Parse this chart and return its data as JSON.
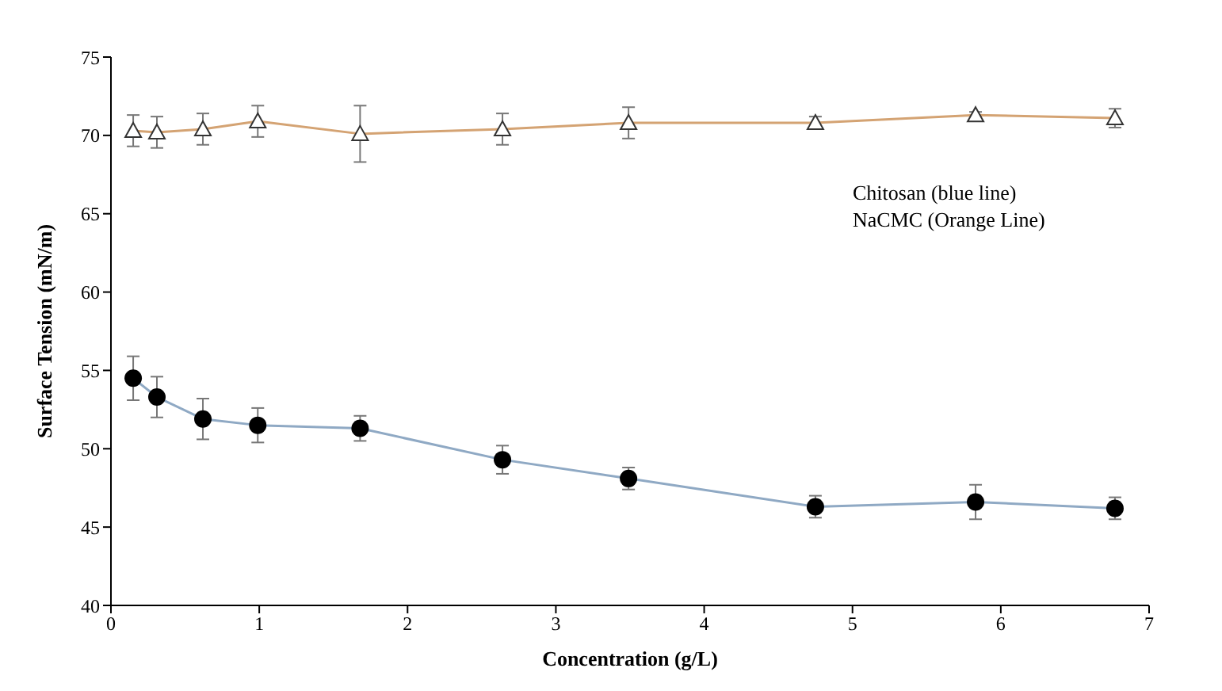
{
  "chart_data": {
    "type": "line",
    "xlabel": "Concentration (g/L)",
    "ylabel": "Surface Tension (mN/m)",
    "x": [
      0.15,
      0.31,
      0.62,
      0.99,
      1.68,
      2.64,
      3.49,
      4.75,
      5.83,
      6.77
    ],
    "series": [
      {
        "color": "#8fa9c4",
        "marker": "circle",
        "values": [
          54.5,
          53.3,
          51.9,
          51.5,
          51.3,
          49.3,
          48.1,
          46.3,
          46.6,
          46.2
        ],
        "errors": [
          1.4,
          1.3,
          1.3,
          1.1,
          0.8,
          0.9,
          0.7,
          0.7,
          1.1,
          0.7
        ]
      },
      {
        "color": "#d4a373",
        "marker": "triangle",
        "values": [
          70.3,
          70.2,
          70.4,
          70.9,
          70.1,
          70.4,
          70.8,
          70.8,
          71.3,
          71.1
        ],
        "errors": [
          1.0,
          1.0,
          1.0,
          1.0,
          1.8,
          1.0,
          1.0,
          0.4,
          0.2,
          0.6
        ]
      }
    ],
    "xlim": [
      0,
      7
    ],
    "xticks": [
      0,
      1,
      2,
      3,
      4,
      5,
      6,
      7
    ],
    "ylim": [
      40,
      75
    ],
    "yticks": [
      40,
      45,
      50,
      55,
      60,
      65,
      70,
      75
    ],
    "grid": false,
    "line_style": "solid",
    "annotations": [
      "Chitosan (blue line)",
      "NaCMC (Orange Line)"
    ]
  }
}
